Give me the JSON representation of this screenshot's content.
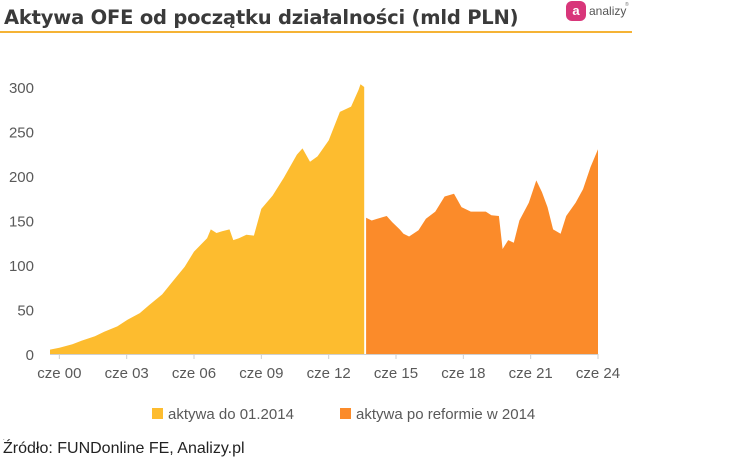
{
  "title": "Aktywa OFE od początku działalności (mld PLN)",
  "brand": {
    "badge": "a",
    "text": "analizy",
    "tm": "®",
    "badge_color": "#d8367a"
  },
  "source": "Źródło: FUNDonline FE, Analizy.pl",
  "tiny_mark": ".",
  "chart_data": {
    "type": "area",
    "title": "Aktywa OFE od początku działalności (mld PLN)",
    "ylim": [
      0,
      300
    ],
    "y_ticks": [
      "0",
      "50",
      "100",
      "150",
      "200",
      "250",
      "300"
    ],
    "x_range": [
      "2000-01",
      "2024-06"
    ],
    "x_ticks": [
      "cze 00",
      "cze 03",
      "cze 06",
      "cze 09",
      "cze 12",
      "cze 15",
      "cze 18",
      "cze 21",
      "cze 24"
    ],
    "grid": false,
    "legend_position": "bottom",
    "series": [
      {
        "name": "aktywa do 01.2014",
        "color": "#fdbc2f",
        "points": [
          [
            "2000-01",
            5
          ],
          [
            "2000-06",
            7
          ],
          [
            "2001-01",
            11
          ],
          [
            "2001-06",
            15
          ],
          [
            "2002-01",
            20
          ],
          [
            "2002-06",
            25
          ],
          [
            "2003-01",
            31
          ],
          [
            "2003-06",
            38
          ],
          [
            "2004-01",
            46
          ],
          [
            "2004-06",
            55
          ],
          [
            "2005-01",
            67
          ],
          [
            "2005-06",
            80
          ],
          [
            "2006-01",
            98
          ],
          [
            "2006-06",
            115
          ],
          [
            "2007-01",
            130
          ],
          [
            "2007-03",
            140
          ],
          [
            "2007-06",
            136
          ],
          [
            "2007-09",
            138
          ],
          [
            "2008-01",
            140
          ],
          [
            "2008-03",
            128
          ],
          [
            "2008-06",
            130
          ],
          [
            "2008-10",
            134
          ],
          [
            "2009-02",
            133
          ],
          [
            "2009-06",
            163
          ],
          [
            "2009-12",
            178
          ],
          [
            "2010-06",
            198
          ],
          [
            "2011-01",
            224
          ],
          [
            "2011-04",
            231
          ],
          [
            "2011-08",
            216
          ],
          [
            "2011-12",
            222
          ],
          [
            "2012-06",
            240
          ],
          [
            "2012-12",
            272
          ],
          [
            "2013-06",
            278
          ],
          [
            "2013-10",
            297
          ],
          [
            "2013-11",
            303
          ],
          [
            "2014-01",
            300
          ]
        ]
      },
      {
        "name": "aktywa po reformie w 2014",
        "color": "#fb8b2a",
        "points": [
          [
            "2014-02",
            153
          ],
          [
            "2014-05",
            150
          ],
          [
            "2014-08",
            152
          ],
          [
            "2015-01",
            155
          ],
          [
            "2015-04",
            148
          ],
          [
            "2015-08",
            140
          ],
          [
            "2015-10",
            135
          ],
          [
            "2016-01",
            132
          ],
          [
            "2016-06",
            139
          ],
          [
            "2016-10",
            152
          ],
          [
            "2017-03",
            160
          ],
          [
            "2017-08",
            177
          ],
          [
            "2018-01",
            180
          ],
          [
            "2018-05",
            165
          ],
          [
            "2018-10",
            160
          ],
          [
            "2019-01",
            160
          ],
          [
            "2019-06",
            160
          ],
          [
            "2019-09",
            156
          ],
          [
            "2020-01",
            155
          ],
          [
            "2020-03",
            118
          ],
          [
            "2020-06",
            128
          ],
          [
            "2020-09",
            125
          ],
          [
            "2020-12",
            150
          ],
          [
            "2021-05",
            170
          ],
          [
            "2021-09",
            195
          ],
          [
            "2021-12",
            182
          ],
          [
            "2022-03",
            165
          ],
          [
            "2022-06",
            140
          ],
          [
            "2022-10",
            135
          ],
          [
            "2023-01",
            155
          ],
          [
            "2023-06",
            170
          ],
          [
            "2023-10",
            185
          ],
          [
            "2024-02",
            210
          ],
          [
            "2024-06",
            230
          ]
        ]
      }
    ]
  }
}
